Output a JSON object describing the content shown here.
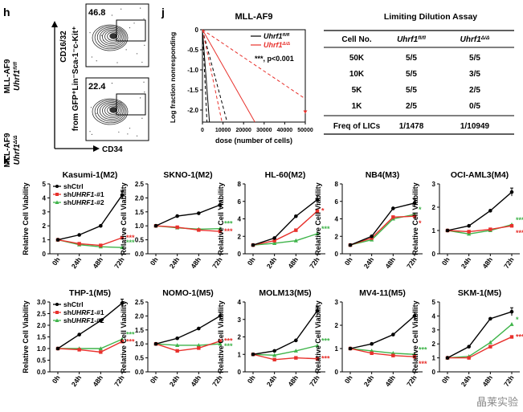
{
  "panel_h": {
    "letter": "h",
    "rows": [
      {
        "group": "MLL-AF9",
        "genotype": "Uhrf1",
        "sup": "fl/fl",
        "percent": "46.8"
      },
      {
        "group": "MLL-AF9",
        "genotype": "Uhrf1",
        "sup": "Δ/Δ",
        "percent": "22.4"
      }
    ],
    "y_axis_label": "CD16/32",
    "y_axis_sub": "from GFP⁺Lin⁻Sca-1⁻c-Kit⁺",
    "x_axis_label": "CD34"
  },
  "panel_j": {
    "letter": "j",
    "table": {
      "title": "Limiting Dilution Assay",
      "headers": [
        {
          "text": "Cell No.",
          "sup": ""
        },
        {
          "text": "Uhrf1",
          "sup": "fl/fl"
        },
        {
          "text": "Uhrf1",
          "sup": "Δ/Δ"
        }
      ],
      "rows": [
        [
          "50K",
          "5/5",
          "5/5"
        ],
        [
          "10K",
          "5/5",
          "3/5"
        ],
        [
          "5K",
          "5/5",
          "2/5"
        ],
        [
          "1K",
          "2/5",
          "0/5"
        ]
      ],
      "footer": [
        "Freq of LICs",
        "1/1478",
        "1/10949"
      ]
    }
  },
  "panel_k": {
    "letter": "k",
    "legend": [
      {
        "name": "shCtrl",
        "gene": "",
        "suffix": "",
        "color": "#000000"
      },
      {
        "name": "sh",
        "gene": "UHRF1",
        "suffix": "-#1",
        "color": "#e8312c"
      },
      {
        "name": "sh",
        "gene": "UHRF1",
        "suffix": "-#2",
        "color": "#3fb44a"
      }
    ]
  },
  "chart_data": [
    {
      "type": "line",
      "panel": "j",
      "title": "MLL-AF9",
      "xlabel": "dose (number of cells)",
      "ylabel": "Log fraction nonresponding",
      "xlim": [
        0,
        50000
      ],
      "ylim": [
        -2.3,
        0
      ],
      "xticks": [
        "0",
        "10000",
        "20000",
        "30000",
        "40000",
        "50000"
      ],
      "yticks": [
        "0",
        "-0.5",
        "-1.0",
        "-1.5",
        "-2.0"
      ],
      "legend": [
        "Uhrf1 fl/fl",
        "Uhrf1 Δ/Δ"
      ],
      "annotation": "***, p<0.001",
      "series": [
        {
          "name": "Uhrf1 fl/fl",
          "color": "#000000",
          "fit": [
            [
              0,
              0
            ],
            [
              3400,
              -2.3
            ]
          ],
          "upper": [
            [
              0,
              0
            ],
            [
              12000,
              -2.3
            ]
          ],
          "lower": [
            [
              0,
              0
            ],
            [
              2200,
              -2.3
            ]
          ]
        },
        {
          "name": "Uhrf1 Δ/Δ",
          "color": "#e8312c",
          "fit": [
            [
              0,
              0
            ],
            [
              25500,
              -2.3
            ]
          ],
          "upper": [
            [
              0,
              0
            ],
            [
              50000,
              -1.72
            ]
          ],
          "lower": [
            [
              0,
              0
            ],
            [
              9500,
              -2.3
            ]
          ],
          "point": [
            50000,
            -2.05
          ]
        }
      ]
    },
    {
      "type": "line",
      "panel": "k",
      "title": "Kasumi-1(M2)",
      "categories": [
        "0h",
        "24h",
        "48h",
        "72h"
      ],
      "ylabel": "Relative Cell Viability",
      "ylim": [
        0,
        5
      ],
      "yticks": [
        "0",
        "1",
        "2",
        "3",
        "4",
        "5"
      ],
      "series": [
        {
          "name": "shCtrl",
          "values": [
            1.0,
            1.35,
            2.0,
            4.2
          ]
        },
        {
          "name": "shUHRF1-#1",
          "values": [
            1.0,
            0.72,
            0.6,
            1.15
          ]
        },
        {
          "name": "shUHRF1-#2",
          "values": [
            1.0,
            0.65,
            0.5,
            0.45
          ]
        }
      ],
      "marks": [
        {
          "series": 1,
          "index": 3,
          "text": "***"
        },
        {
          "series": 2,
          "index": 3,
          "text": "***"
        }
      ]
    },
    {
      "type": "line",
      "panel": "k",
      "title": "SKNO-1(M2)",
      "categories": [
        "0h",
        "24h",
        "48h",
        "72h"
      ],
      "ylabel": "Relative Cell Viability",
      "ylim": [
        0,
        2.5
      ],
      "yticks": [
        "0.0",
        "0.5",
        "1.0",
        "1.5",
        "2.0",
        "2.5"
      ],
      "series": [
        {
          "name": "shCtrl",
          "values": [
            1.0,
            1.35,
            1.45,
            1.75
          ]
        },
        {
          "name": "shUHRF1-#1",
          "values": [
            1.0,
            0.95,
            0.85,
            0.8
          ]
        },
        {
          "name": "shUHRF1-#2",
          "values": [
            1.0,
            0.93,
            0.88,
            0.9
          ]
        }
      ],
      "marks": [
        {
          "series": 2,
          "index": 3,
          "text": "***"
        },
        {
          "series": 1,
          "index": 3,
          "text": "***"
        }
      ]
    },
    {
      "type": "line",
      "panel": "k",
      "title": "HL-60(M2)",
      "categories": [
        "0h",
        "24h",
        "48h",
        "72h"
      ],
      "ylabel": "Relative Cell Viability",
      "ylim": [
        0,
        8
      ],
      "yticks": [
        "0",
        "2",
        "4",
        "6",
        "8"
      ],
      "series": [
        {
          "name": "shCtrl",
          "values": [
            1.0,
            1.8,
            4.3,
            6.2
          ]
        },
        {
          "name": "shUHRF1-#1",
          "values": [
            1.0,
            1.5,
            2.7,
            4.9
          ]
        },
        {
          "name": "shUHRF1-#2",
          "values": [
            1.0,
            1.2,
            1.5,
            2.3
          ]
        }
      ],
      "marks": [
        {
          "series": 1,
          "index": 3,
          "text": "*"
        },
        {
          "series": 2,
          "index": 3,
          "text": "***"
        }
      ]
    },
    {
      "type": "line",
      "panel": "k",
      "title": "NB4(M3)",
      "categories": [
        "0h",
        "24h",
        "48h",
        "72h"
      ],
      "ylabel": "Relative Cell Viability",
      "ylim": [
        0,
        8
      ],
      "yticks": [
        "0",
        "2",
        "4",
        "6",
        "8"
      ],
      "series": [
        {
          "name": "shCtrl",
          "values": [
            1.0,
            2.0,
            5.2,
            5.8
          ]
        },
        {
          "name": "shUHRF1-#1",
          "values": [
            1.0,
            1.8,
            4.2,
            4.3
          ]
        },
        {
          "name": "shUHRF1-#2",
          "values": [
            1.0,
            1.6,
            4.0,
            4.5
          ]
        }
      ],
      "marks": [
        {
          "series": 2,
          "index": 3,
          "text": "*"
        },
        {
          "series": 1,
          "index": 3,
          "text": "*"
        }
      ]
    },
    {
      "type": "line",
      "panel": "k",
      "title": "OCI-AML3(M4)",
      "categories": [
        "0h",
        "24h",
        "48h",
        "72h"
      ],
      "ylabel": "Relative Cell Viability",
      "ylim": [
        0,
        3
      ],
      "yticks": [
        "0",
        "1",
        "2",
        "3"
      ],
      "series": [
        {
          "name": "shCtrl",
          "values": [
            1.0,
            1.2,
            1.85,
            2.65
          ]
        },
        {
          "name": "shUHRF1-#1",
          "values": [
            1.0,
            0.95,
            1.05,
            1.2
          ]
        },
        {
          "name": "shUHRF1-#2",
          "values": [
            1.0,
            0.85,
            1.0,
            1.25
          ]
        }
      ],
      "marks": [
        {
          "series": 2,
          "index": 3,
          "text": "***"
        },
        {
          "series": 1,
          "index": 3,
          "text": "***"
        }
      ]
    },
    {
      "type": "line",
      "panel": "k",
      "title": "THP-1(M5)",
      "categories": [
        "0h",
        "24h",
        "48h",
        "72h"
      ],
      "ylabel": "Relative Cell Viability",
      "ylim": [
        0,
        3
      ],
      "yticks": [
        "0.0",
        "0.5",
        "1.0",
        "1.5",
        "2.0",
        "2.5",
        "3.0"
      ],
      "series": [
        {
          "name": "shCtrl",
          "values": [
            1.0,
            1.6,
            2.2,
            2.95
          ]
        },
        {
          "name": "shUHRF1-#1",
          "values": [
            1.0,
            0.95,
            0.85,
            1.3
          ]
        },
        {
          "name": "shUHRF1-#2",
          "values": [
            1.0,
            1.0,
            1.0,
            1.4
          ]
        }
      ],
      "marks": [
        {
          "series": 2,
          "index": 3,
          "text": "***"
        },
        {
          "series": 1,
          "index": 3,
          "text": "***"
        }
      ]
    },
    {
      "type": "line",
      "panel": "k",
      "title": "NOMO-1(M5)",
      "categories": [
        "0h",
        "24h",
        "48h",
        "72h"
      ],
      "ylabel": "Relative Cell Viability",
      "ylim": [
        0,
        2.5
      ],
      "yticks": [
        "0.0",
        "0.5",
        "1.0",
        "1.5",
        "2.0",
        "2.5"
      ],
      "series": [
        {
          "name": "shCtrl",
          "values": [
            1.0,
            1.2,
            1.55,
            2.0
          ]
        },
        {
          "name": "shUHRF1-#1",
          "values": [
            1.0,
            0.75,
            0.85,
            1.1
          ]
        },
        {
          "name": "shUHRF1-#2",
          "values": [
            1.0,
            0.95,
            0.95,
            1.0
          ]
        }
      ],
      "marks": [
        {
          "series": 1,
          "index": 3,
          "text": "***"
        },
        {
          "series": 2,
          "index": 3,
          "text": "***"
        }
      ]
    },
    {
      "type": "line",
      "panel": "k",
      "title": "MOLM13(M5)",
      "categories": [
        "0h",
        "24h",
        "48h",
        "72h"
      ],
      "ylabel": "Relative Cell Viability",
      "ylim": [
        0,
        4
      ],
      "yticks": [
        "0",
        "1",
        "2",
        "3",
        "4"
      ],
      "series": [
        {
          "name": "shCtrl",
          "values": [
            1.0,
            1.2,
            1.8,
            3.5
          ]
        },
        {
          "name": "shUHRF1-#1",
          "values": [
            1.0,
            0.7,
            0.8,
            0.75
          ]
        },
        {
          "name": "shUHRF1-#2",
          "values": [
            1.0,
            0.95,
            1.2,
            1.5
          ]
        }
      ],
      "marks": [
        {
          "series": 2,
          "index": 3,
          "text": "***"
        },
        {
          "series": 1,
          "index": 3,
          "text": "***"
        }
      ]
    },
    {
      "type": "line",
      "panel": "k",
      "title": "MV4-11(M5)",
      "categories": [
        "0h",
        "24h",
        "48h",
        "72h"
      ],
      "ylabel": "Relative Cell Viability",
      "ylim": [
        0,
        3
      ],
      "yticks": [
        "0",
        "1",
        "2",
        "3"
      ],
      "series": [
        {
          "name": "shCtrl",
          "values": [
            1.0,
            1.2,
            1.6,
            2.4
          ]
        },
        {
          "name": "shUHRF1-#1",
          "values": [
            1.0,
            0.8,
            0.7,
            0.65
          ]
        },
        {
          "name": "shUHRF1-#2",
          "values": [
            1.0,
            0.9,
            0.8,
            0.75
          ]
        }
      ],
      "marks": [
        {
          "series": 2,
          "index": 3,
          "text": "***"
        },
        {
          "series": 1,
          "index": 3,
          "text": "***"
        }
      ]
    },
    {
      "type": "line",
      "panel": "k",
      "title": "SKM-1(M5)",
      "categories": [
        "0h",
        "24h",
        "48h",
        "72h"
      ],
      "ylabel": "Relative Cell Viability",
      "ylim": [
        0,
        5
      ],
      "yticks": [
        "0",
        "1",
        "2",
        "3",
        "4",
        "5"
      ],
      "series": [
        {
          "name": "shCtrl",
          "values": [
            1.0,
            1.8,
            3.8,
            4.3
          ]
        },
        {
          "name": "shUHRF1-#1",
          "values": [
            1.0,
            1.0,
            1.8,
            2.5
          ]
        },
        {
          "name": "shUHRF1-#2",
          "values": [
            1.0,
            1.1,
            2.1,
            3.4
          ]
        }
      ],
      "marks": [
        {
          "series": 2,
          "index": 3,
          "text": "*"
        },
        {
          "series": 1,
          "index": 3,
          "text": "***"
        }
      ]
    }
  ],
  "watermark": "晶莱实验"
}
